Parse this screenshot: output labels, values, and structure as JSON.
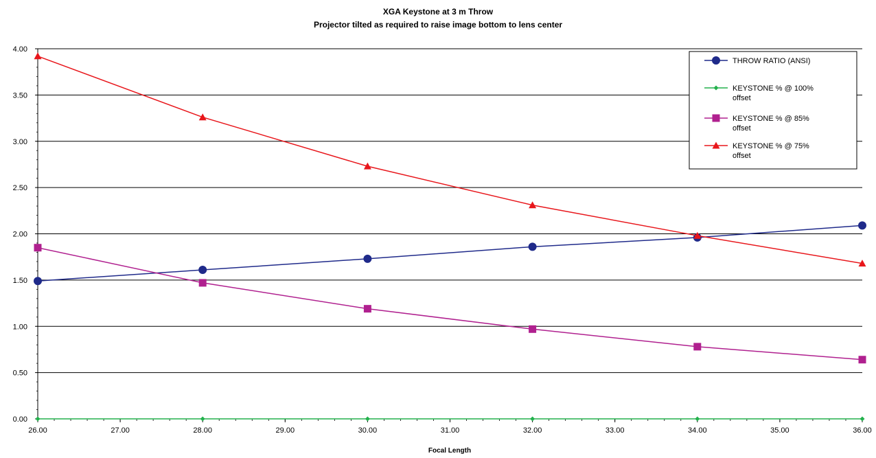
{
  "chart_data": {
    "type": "line",
    "title": "XGA Keystone at 3 m Throw",
    "subtitle": "Projector tilted as required to raise image bottom to lens center",
    "xlabel": "Focal Length",
    "ylabel": "",
    "xlim": [
      26,
      36
    ],
    "ylim": [
      0,
      4
    ],
    "x_ticks": [
      "26.00",
      "27.00",
      "28.00",
      "29.00",
      "30.00",
      "31.00",
      "32.00",
      "33.00",
      "34.00",
      "35.00",
      "36.00"
    ],
    "y_ticks": [
      "0.00",
      "0.50",
      "1.00",
      "1.50",
      "2.00",
      "2.50",
      "3.00",
      "3.50",
      "4.00"
    ],
    "grid": "horizontal",
    "legend_position": "top-right",
    "series": [
      {
        "name": "THROW RATIO (ANSI)",
        "color": "#1f2a8a",
        "marker": "circle",
        "points": [
          [
            26,
            1.49
          ],
          [
            28,
            1.61
          ],
          [
            30,
            1.73
          ],
          [
            32,
            1.86
          ],
          [
            34,
            1.96
          ],
          [
            36,
            2.09
          ]
        ]
      },
      {
        "name": "KEYSTONE % @ 100% offset",
        "color": "#22b14c",
        "marker": "diamond",
        "points": [
          [
            26,
            0
          ],
          [
            28,
            0
          ],
          [
            30,
            0
          ],
          [
            32,
            0
          ],
          [
            34,
            0
          ],
          [
            36,
            0
          ]
        ]
      },
      {
        "name": "KEYSTONE % @ 85% offset",
        "color": "#b0208f",
        "marker": "square",
        "points": [
          [
            26,
            1.85
          ],
          [
            28,
            1.47
          ],
          [
            30,
            1.19
          ],
          [
            32,
            0.97
          ],
          [
            34,
            0.78
          ],
          [
            36,
            0.64
          ]
        ]
      },
      {
        "name": "KEYSTONE % @ 75% offset",
        "color": "#e8161b",
        "marker": "triangle",
        "points": [
          [
            26,
            3.92
          ],
          [
            28,
            3.26
          ],
          [
            30,
            2.73
          ],
          [
            32,
            2.31
          ],
          [
            34,
            1.98
          ],
          [
            36,
            1.68
          ]
        ]
      }
    ]
  }
}
